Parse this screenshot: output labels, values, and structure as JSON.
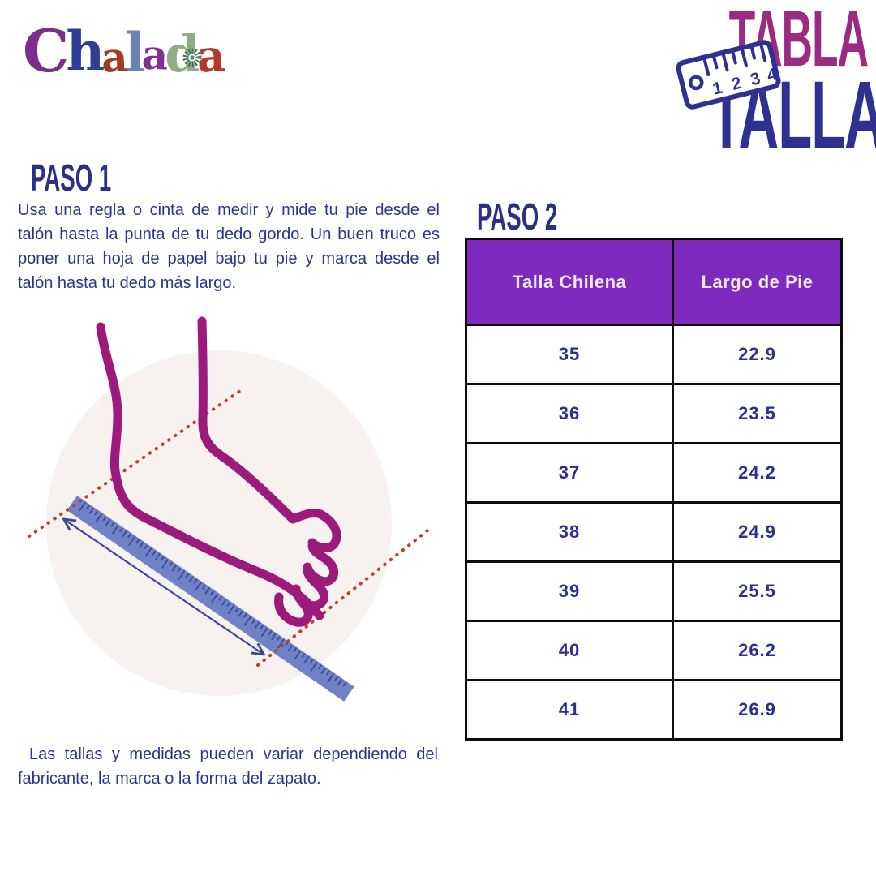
{
  "logo": {
    "text": "Chalada",
    "letters": [
      {
        "char": "C",
        "color": "#7C2E8F"
      },
      {
        "char": "h",
        "color": "#2C3E96"
      },
      {
        "char": "a",
        "color": "#A23A26"
      },
      {
        "char": "l",
        "color": "#6C82B5"
      },
      {
        "char": "a",
        "color": "#803090"
      },
      {
        "char": "d",
        "color": "#8FAE85"
      },
      {
        "char": "a",
        "color": "#B23A28"
      }
    ]
  },
  "title": {
    "line1": "TABLA DE",
    "line2": "TALLAS",
    "badge_numbers": [
      "1",
      "2",
      "3",
      "4"
    ]
  },
  "step1": {
    "heading": "PASO 1",
    "paragraph": "Usa una regla o cinta de medir y mide tu pie desde el talón hasta la punta de tu dedo gordo. Un buen truco es poner una hoja de papel bajo tu pie y marca desde el talón hasta tu dedo más largo."
  },
  "step2": {
    "heading": "PASO 2"
  },
  "size_table": {
    "columns": [
      "Talla Chilena",
      "Largo de Pie"
    ],
    "rows": [
      [
        "35",
        "22.9"
      ],
      [
        "36",
        "23.5"
      ],
      [
        "37",
        "24.2"
      ],
      [
        "38",
        "24.9"
      ],
      [
        "39",
        "25.5"
      ],
      [
        "40",
        "26.2"
      ],
      [
        "41",
        "26.9"
      ]
    ]
  },
  "disclaimer": "Las tallas y medidas pueden variar dependiendo del fabricante, la marca o la forma del zapato.",
  "icons": {
    "badge": "ruler-icon",
    "logo_flower": "mandala-flower-icon",
    "illustration": "foot-measurement-illustration"
  },
  "colors": {
    "navy_text": "#2A3590",
    "navy_dark": "#283186",
    "title_magenta": "#9A2B80",
    "title_navy": "#2E3192",
    "table_header_bg": "#7E2ABF",
    "table_header_text": "#F7E8F8",
    "table_border": "#0D0D0D",
    "table_cell_text": "#2B2F93",
    "foot_magenta": "#9D1A7D",
    "ruler_blue": "#7082C6",
    "ruler_tick": "#39459A",
    "dotted_red": "#BC4126",
    "circle_bg": "#F7F1F0",
    "arrow_navy": "#3A4897",
    "mandala_green": "#3D6B4E",
    "mandala_teal": "#2E8C8C"
  }
}
